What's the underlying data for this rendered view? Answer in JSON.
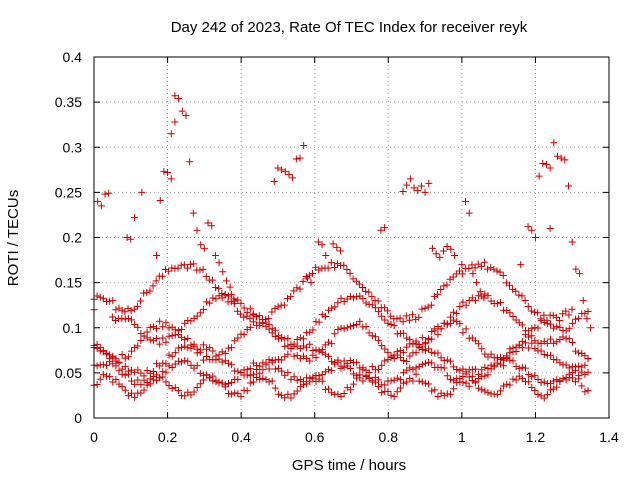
{
  "chart_data": {
    "type": "scatter",
    "title": "Day 242 of 2023, Rate Of TEC Index for receiver reyk",
    "xlabel": "GPS time / hours",
    "ylabel": "ROTI / TECUs",
    "xlim": [
      0,
      1.4
    ],
    "ylim": [
      0,
      0.4
    ],
    "x_ticks": [
      0,
      0.2,
      0.4,
      0.6,
      0.8,
      1,
      1.2,
      1.4
    ],
    "x_tick_labels": [
      "0",
      "0.2",
      "0.4",
      "0.6",
      "0.8",
      "1",
      "1.2",
      "1.4"
    ],
    "y_ticks": [
      0,
      0.05,
      0.1,
      0.15,
      0.2,
      0.25,
      0.3,
      0.35,
      0.4
    ],
    "y_tick_labels": [
      "0",
      "0.05",
      "0.1",
      "0.15",
      "0.2",
      "0.25",
      "0.3",
      "0.35",
      "0.4"
    ],
    "grid": true,
    "legend": "none",
    "marker": "plus",
    "marker_color": "#cc0000",
    "series": [
      {
        "points": [
          [
            0.0,
            0.12
          ],
          [
            0.01,
            0.24
          ],
          [
            0.02,
            0.235
          ],
          [
            0.03,
            0.248
          ],
          [
            0.04,
            0.249
          ],
          [
            0.09,
            0.2
          ],
          [
            0.1,
            0.198
          ],
          [
            0.11,
            0.222
          ],
          [
            0.13,
            0.25
          ],
          [
            0.17,
            0.18
          ],
          [
            0.18,
            0.241
          ],
          [
            0.19,
            0.273
          ],
          [
            0.2,
            0.272
          ],
          [
            0.21,
            0.265
          ],
          [
            0.21,
            0.315
          ],
          [
            0.22,
            0.357
          ],
          [
            0.23,
            0.354
          ],
          [
            0.24,
            0.34
          ],
          [
            0.25,
            0.335
          ],
          [
            0.22,
            0.328
          ],
          [
            0.26,
            0.284
          ],
          [
            0.27,
            0.227
          ],
          [
            0.28,
            0.208
          ],
          [
            0.29,
            0.192
          ],
          [
            0.3,
            0.188
          ],
          [
            0.31,
            0.216
          ],
          [
            0.32,
            0.213
          ],
          [
            0.33,
            0.18
          ],
          [
            0.34,
            0.172
          ],
          [
            0.35,
            0.162
          ],
          [
            0.36,
            0.152
          ],
          [
            0.37,
            0.145
          ],
          [
            0.38,
            0.132
          ],
          [
            0.49,
            0.262
          ],
          [
            0.5,
            0.277
          ],
          [
            0.51,
            0.275
          ],
          [
            0.52,
            0.273
          ],
          [
            0.53,
            0.27
          ],
          [
            0.54,
            0.266
          ],
          [
            0.55,
            0.287
          ],
          [
            0.56,
            0.288
          ],
          [
            0.57,
            0.302
          ],
          [
            0.58,
            0.155
          ],
          [
            0.59,
            0.15
          ],
          [
            0.61,
            0.195
          ],
          [
            0.62,
            0.192
          ],
          [
            0.63,
            0.18
          ],
          [
            0.65,
            0.193
          ],
          [
            0.66,
            0.189
          ],
          [
            0.67,
            0.185
          ],
          [
            0.78,
            0.208
          ],
          [
            0.79,
            0.211
          ],
          [
            0.84,
            0.251
          ],
          [
            0.85,
            0.258
          ],
          [
            0.86,
            0.265
          ],
          [
            0.87,
            0.255
          ],
          [
            0.88,
            0.252
          ],
          [
            0.89,
            0.257
          ],
          [
            0.9,
            0.25
          ],
          [
            0.91,
            0.26
          ],
          [
            0.92,
            0.188
          ],
          [
            0.93,
            0.182
          ],
          [
            0.94,
            0.178
          ],
          [
            0.95,
            0.185
          ],
          [
            0.96,
            0.19
          ],
          [
            0.97,
            0.187
          ],
          [
            0.98,
            0.18
          ],
          [
            1.0,
            0.17
          ],
          [
            1.01,
            0.24
          ],
          [
            1.02,
            0.227
          ],
          [
            1.03,
            0.16
          ],
          [
            1.04,
            0.15
          ],
          [
            1.05,
            0.14
          ],
          [
            1.06,
            0.133
          ],
          [
            1.16,
            0.17
          ],
          [
            1.18,
            0.212
          ],
          [
            1.19,
            0.208
          ],
          [
            1.2,
            0.2
          ],
          [
            1.21,
            0.268
          ],
          [
            1.22,
            0.282
          ],
          [
            1.23,
            0.281
          ],
          [
            1.24,
            0.277
          ],
          [
            1.24,
            0.21
          ],
          [
            1.25,
            0.305
          ],
          [
            1.26,
            0.29
          ],
          [
            1.27,
            0.288
          ],
          [
            1.28,
            0.286
          ],
          [
            1.29,
            0.257
          ],
          [
            1.3,
            0.195
          ],
          [
            1.31,
            0.165
          ],
          [
            1.32,
            0.16
          ],
          [
            1.33,
            0.13
          ],
          [
            1.34,
            0.11
          ],
          [
            1.35,
            0.1
          ]
        ],
        "bands": [
          {
            "x_start": 0.0,
            "x_end": 1.35,
            "center": 0.035,
            "amplitude": 0.01,
            "period": 0.14,
            "phase": 0.0
          },
          {
            "x_start": 0.0,
            "x_end": 1.35,
            "center": 0.05,
            "amplitude": 0.012,
            "period": 0.22,
            "phase": 0.9
          },
          {
            "x_start": 0.0,
            "x_end": 1.35,
            "center": 0.065,
            "amplitude": 0.015,
            "period": 0.3,
            "phase": 2.1
          },
          {
            "x_start": 0.0,
            "x_end": 1.35,
            "center": 0.085,
            "amplitude": 0.02,
            "period": 0.26,
            "phase": 3.3
          },
          {
            "x_start": 0.0,
            "x_end": 1.35,
            "center": 0.11,
            "amplitude": 0.025,
            "period": 0.35,
            "phase": 1.5
          },
          {
            "x_start": 0.05,
            "x_end": 1.3,
            "center": 0.14,
            "amplitude": 0.03,
            "period": 0.4,
            "phase": 4.0
          }
        ]
      }
    ]
  }
}
